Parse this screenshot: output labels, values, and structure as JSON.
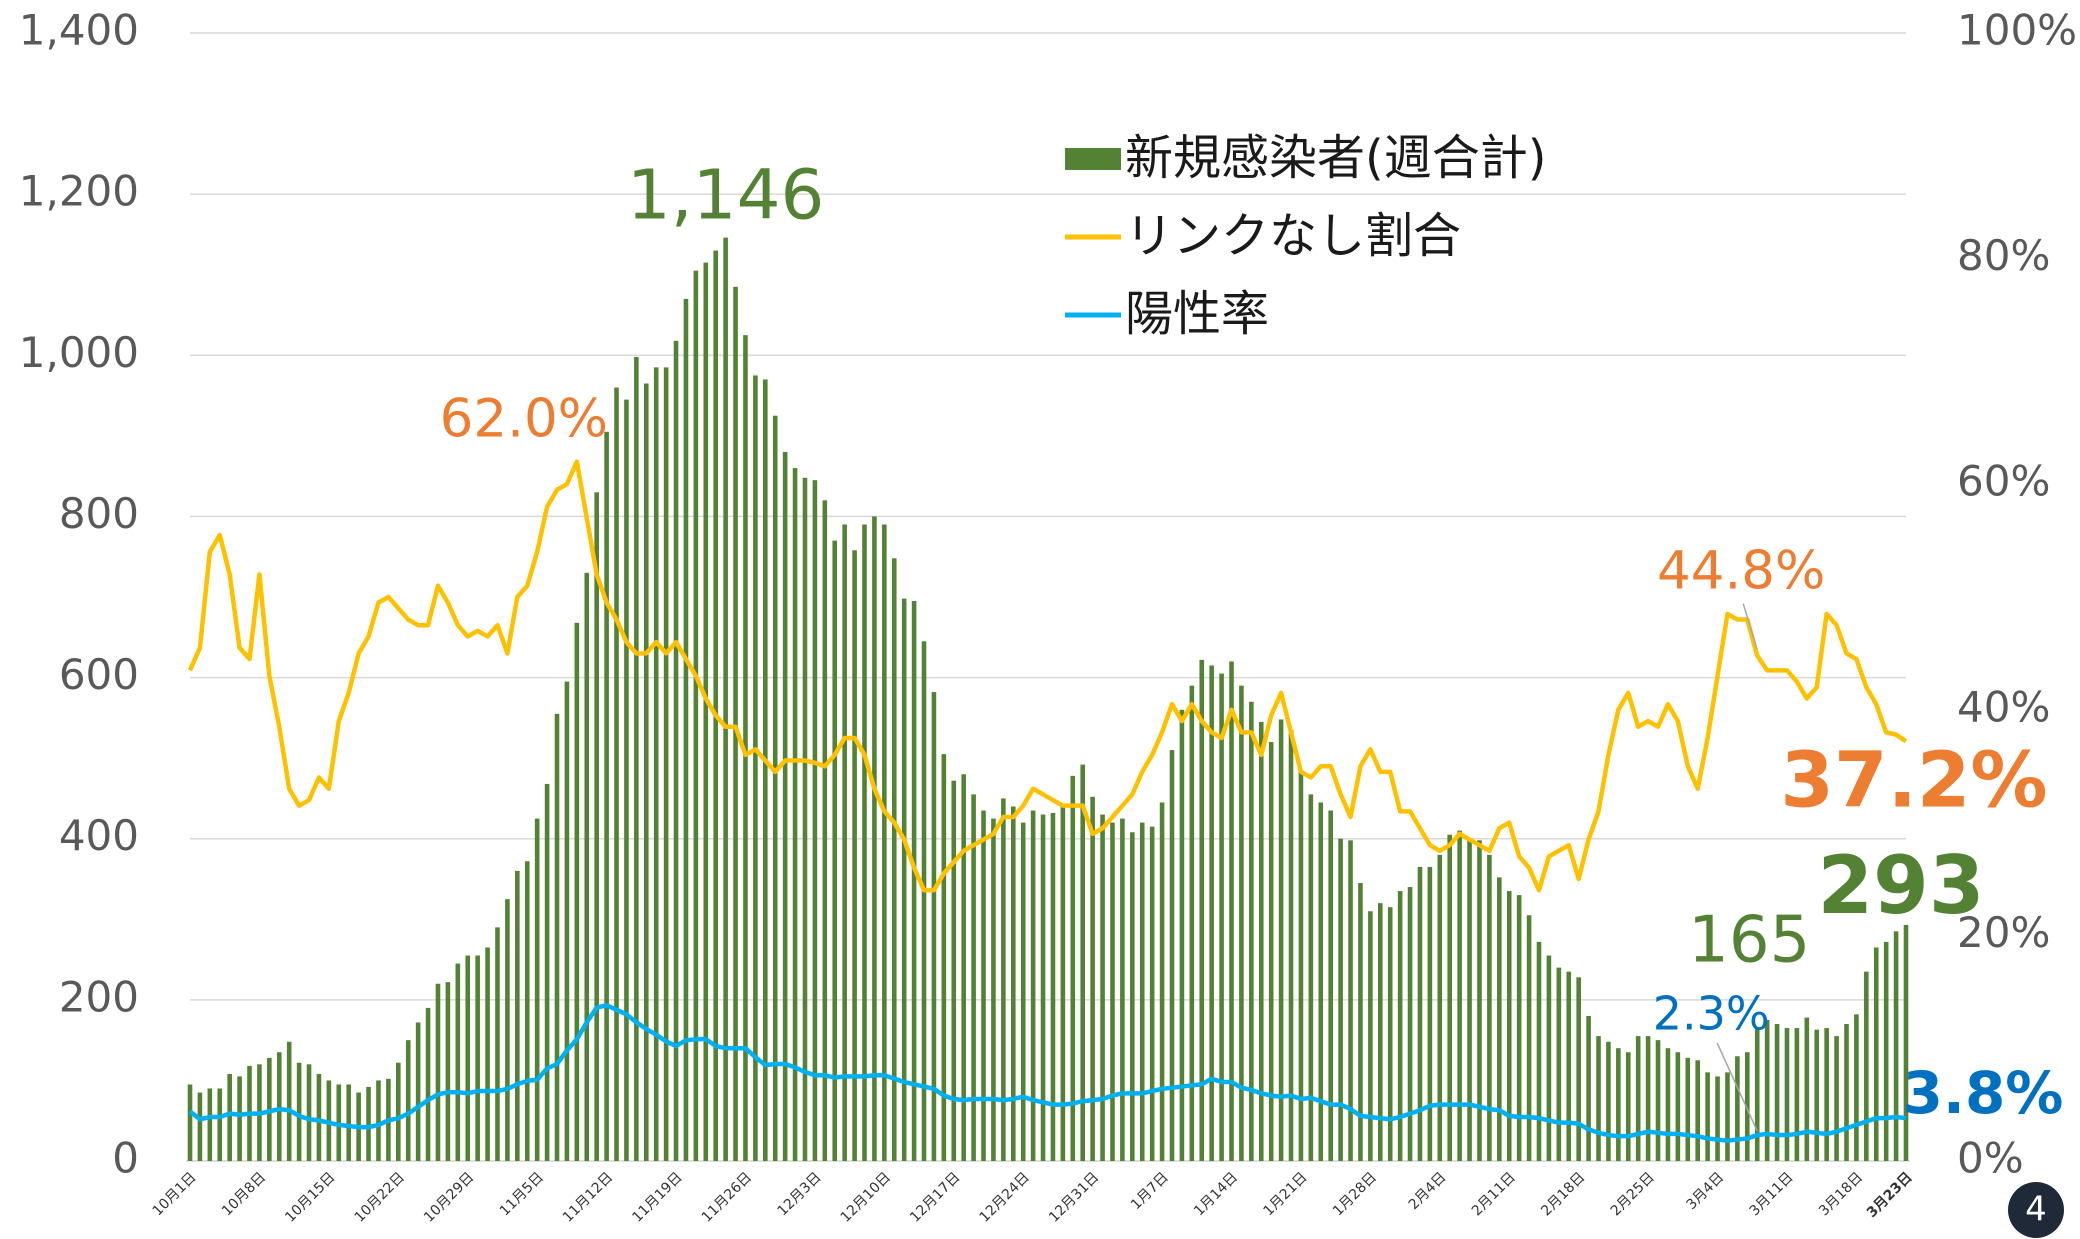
{
  "chart_data": {
    "type": "bar-line",
    "page_number": "4",
    "categories": [
      "10月1日",
      null,
      null,
      null,
      null,
      null,
      null,
      "10月8日",
      null,
      null,
      null,
      null,
      null,
      null,
      "10月15日",
      null,
      null,
      null,
      null,
      null,
      null,
      "10月22日",
      null,
      null,
      null,
      null,
      null,
      null,
      "10月29日",
      null,
      null,
      null,
      null,
      null,
      null,
      "11月5日",
      null,
      null,
      null,
      null,
      null,
      null,
      "11月12日",
      null,
      null,
      null,
      null,
      null,
      null,
      "11月19日",
      null,
      null,
      null,
      null,
      null,
      null,
      "11月26日",
      null,
      null,
      null,
      null,
      null,
      null,
      "12月3日",
      null,
      null,
      null,
      null,
      null,
      null,
      "12月10日",
      null,
      null,
      null,
      null,
      null,
      null,
      "12月17日",
      null,
      null,
      null,
      null,
      null,
      null,
      "12月24日",
      null,
      null,
      null,
      null,
      null,
      null,
      "12月31日",
      null,
      null,
      null,
      null,
      null,
      null,
      "1月7日",
      null,
      null,
      null,
      null,
      null,
      null,
      "1月14日",
      null,
      null,
      null,
      null,
      null,
      null,
      "1月21日",
      null,
      null,
      null,
      null,
      null,
      null,
      "1月28日",
      null,
      null,
      null,
      null,
      null,
      null,
      "2月4日",
      null,
      null,
      null,
      null,
      null,
      null,
      "2月11日",
      null,
      null,
      null,
      null,
      null,
      null,
      "2月18日",
      null,
      null,
      null,
      null,
      null,
      null,
      "2月25日",
      null,
      null,
      null,
      null,
      null,
      null,
      "3月4日",
      null,
      null,
      null,
      null,
      null,
      null,
      "3月11日",
      null,
      null,
      null,
      null,
      null,
      null,
      "3月18日",
      null,
      null,
      null,
      null,
      "3月23日"
    ],
    "series": [
      {
        "name": "新規感染者(週合計)",
        "type": "bar",
        "axis": "y",
        "color": "#548235",
        "label_color": "#548235",
        "values": [
          95,
          85,
          90,
          90,
          108,
          105,
          118,
          120,
          128,
          135,
          148,
          122,
          120,
          108,
          100,
          95,
          95,
          85,
          92,
          100,
          102,
          122,
          150,
          172,
          190,
          220,
          222,
          245,
          255,
          255,
          265,
          290,
          325,
          360,
          372,
          425,
          468,
          555,
          595,
          668,
          730,
          830,
          905,
          960,
          945,
          998,
          965,
          985,
          985,
          1018,
          1070,
          1105,
          1115,
          1130,
          1146,
          1085,
          1025,
          975,
          970,
          925,
          880,
          860,
          848,
          845,
          820,
          770,
          790,
          758,
          790,
          800,
          790,
          748,
          698,
          695,
          645,
          582,
          505,
          472,
          480,
          455,
          435,
          425,
          450,
          440,
          420,
          435,
          430,
          432,
          440,
          478,
          492,
          452,
          430,
          420,
          425,
          408,
          420,
          415,
          445,
          510,
          560,
          590,
          622,
          615,
          605,
          620,
          590,
          570,
          545,
          520,
          548,
          535,
          485,
          455,
          445,
          435,
          400,
          398,
          345,
          310,
          320,
          315,
          335,
          340,
          365,
          365,
          380,
          405,
          410,
          400,
          398,
          380,
          352,
          335,
          330,
          305,
          272,
          255,
          240,
          235,
          228,
          180,
          155,
          148,
          140,
          135,
          155,
          155,
          150,
          140,
          135,
          128,
          125,
          110,
          105,
          110,
          130,
          135,
          165,
          175,
          170,
          165,
          165,
          178,
          163,
          165,
          155,
          170,
          182,
          235,
          265,
          272,
          285,
          293
        ],
        "value_labels": {
          "54": "1,146"
        }
      },
      {
        "name": "リンクなし割合",
        "type": "line",
        "axis": "y2",
        "color": "#ffc000",
        "label_color": "#ed7d31",
        "values": [
          43.5,
          45.5,
          54,
          55.5,
          52,
          45.5,
          44.5,
          52,
          43,
          38.5,
          33,
          31.5,
          32,
          34,
          33,
          39,
          41.5,
          45,
          46.5,
          49.5,
          50,
          49,
          48,
          47.5,
          47.5,
          51,
          49.5,
          47.5,
          46.5,
          47,
          46.5,
          47.5,
          45,
          50,
          51,
          54,
          58,
          59.5,
          60,
          62,
          57,
          52,
          49.5,
          48,
          46,
          45,
          45,
          46,
          45,
          46,
          44.5,
          43,
          41,
          39.5,
          38.5,
          38.5,
          36,
          36.5,
          35.5,
          34.5,
          35.5,
          35.5,
          35.5,
          35.3,
          35,
          36,
          37.5,
          37.5,
          36,
          33,
          31,
          30,
          28.5,
          26,
          24,
          24,
          25.5,
          26.5,
          27.5,
          28,
          28.5,
          29,
          30.5,
          30.5,
          31.5,
          33,
          32.5,
          32,
          31.5,
          31.5,
          31.5,
          29,
          29.5,
          30.5,
          31.5,
          32.5,
          34.5,
          36,
          38,
          40.5,
          39,
          40.5,
          39,
          38,
          37.5,
          40,
          38,
          38,
          36,
          39.5,
          41.5,
          38,
          34.5,
          34,
          35,
          35,
          32.5,
          30.5,
          35,
          36.5,
          34.5,
          34.5,
          31,
          31,
          29.5,
          28,
          27.5,
          28,
          29,
          28.5,
          28,
          27.5,
          29.5,
          30,
          27,
          26,
          24,
          27,
          27.5,
          28,
          25,
          28.5,
          31,
          36,
          40,
          41.5,
          38.5,
          39,
          38.5,
          40.5,
          39,
          35,
          33,
          37.5,
          43,
          48.5,
          48,
          48,
          44.8,
          43.5,
          43.5,
          43.5,
          42.5,
          41,
          42,
          48.5,
          47.5,
          45,
          44.5,
          42,
          40.5,
          38,
          37.8,
          37.2
        ],
        "value_labels": {
          "39": "62.0%",
          "158": "44.8%",
          "173": "37.2%"
        }
      },
      {
        "name": "陽性率",
        "type": "line",
        "axis": "y2",
        "color": "#00b0f0",
        "label_color": "#0070c0",
        "values": [
          4.4,
          3.7,
          3.9,
          3.9,
          4.2,
          4.1,
          4.2,
          4.2,
          4.4,
          4.6,
          4.5,
          4.0,
          3.7,
          3.6,
          3.4,
          3.2,
          3.1,
          3.0,
          3.0,
          3.2,
          3.6,
          3.8,
          4.2,
          4.8,
          5.4,
          5.9,
          6.1,
          6.1,
          6.0,
          6.2,
          6.2,
          6.2,
          6.4,
          6.8,
          7.1,
          7.2,
          8.2,
          8.6,
          9.8,
          10.8,
          12.3,
          13.6,
          13.8,
          13.4,
          13.0,
          12.3,
          11.7,
          11.2,
          10.6,
          10.2,
          10.7,
          10.8,
          10.8,
          10.2,
          10.0,
          10.0,
          10.0,
          9.2,
          8.5,
          8.6,
          8.6,
          8.3,
          7.9,
          7.6,
          7.6,
          7.4,
          7.5,
          7.5,
          7.5,
          7.6,
          7.6,
          7.3,
          7.0,
          6.8,
          6.6,
          6.4,
          5.8,
          5.5,
          5.4,
          5.5,
          5.5,
          5.5,
          5.4,
          5.5,
          5.7,
          5.4,
          5.2,
          5.0,
          5.0,
          5.1,
          5.3,
          5.4,
          5.5,
          5.8,
          6.0,
          6.0,
          6.0,
          6.2,
          6.4,
          6.5,
          6.6,
          6.7,
          6.8,
          7.3,
          7.0,
          7.0,
          6.5,
          6.3,
          6.0,
          5.8,
          5.7,
          5.8,
          5.5,
          5.6,
          5.3,
          5.0,
          5.0,
          4.6,
          4.0,
          3.9,
          3.8,
          3.7,
          3.9,
          4.2,
          4.5,
          4.9,
          5.0,
          5.0,
          5.0,
          5.0,
          4.8,
          4.6,
          4.5,
          4.0,
          3.9,
          3.9,
          3.8,
          3.6,
          3.4,
          3.4,
          3.3,
          2.8,
          2.5,
          2.3,
          2.2,
          2.2,
          2.4,
          2.6,
          2.5,
          2.4,
          2.4,
          2.3,
          2.2,
          2.0,
          1.9,
          1.8,
          1.9,
          2.0,
          2.3,
          2.4,
          2.3,
          2.3,
          2.4,
          2.6,
          2.5,
          2.4,
          2.6,
          2.9,
          3.2,
          3.5,
          3.8,
          3.8,
          3.9,
          3.8
        ],
        "value_labels": {
          "158": "2.3%",
          "173": "3.8%"
        }
      }
    ],
    "ylim": [
      0,
      1400
    ],
    "yticks": [
      0,
      200,
      400,
      600,
      800,
      {
        "value": 1000,
        "label": "1,000"
      },
      {
        "value": 1200,
        "label": "1,200"
      },
      {
        "value": 1400,
        "label": "1,400"
      }
    ],
    "y2lim": [
      0,
      100
    ],
    "y2ticks": [
      {
        "value": 0,
        "label": "0%"
      },
      {
        "value": 20,
        "label": "20%"
      },
      {
        "value": 40,
        "label": "40%"
      },
      {
        "value": 60,
        "label": "60%"
      },
      {
        "value": 80,
        "label": "80%"
      },
      {
        "value": 100,
        "label": "100%"
      }
    ],
    "grid": true,
    "legend": "top-center"
  }
}
